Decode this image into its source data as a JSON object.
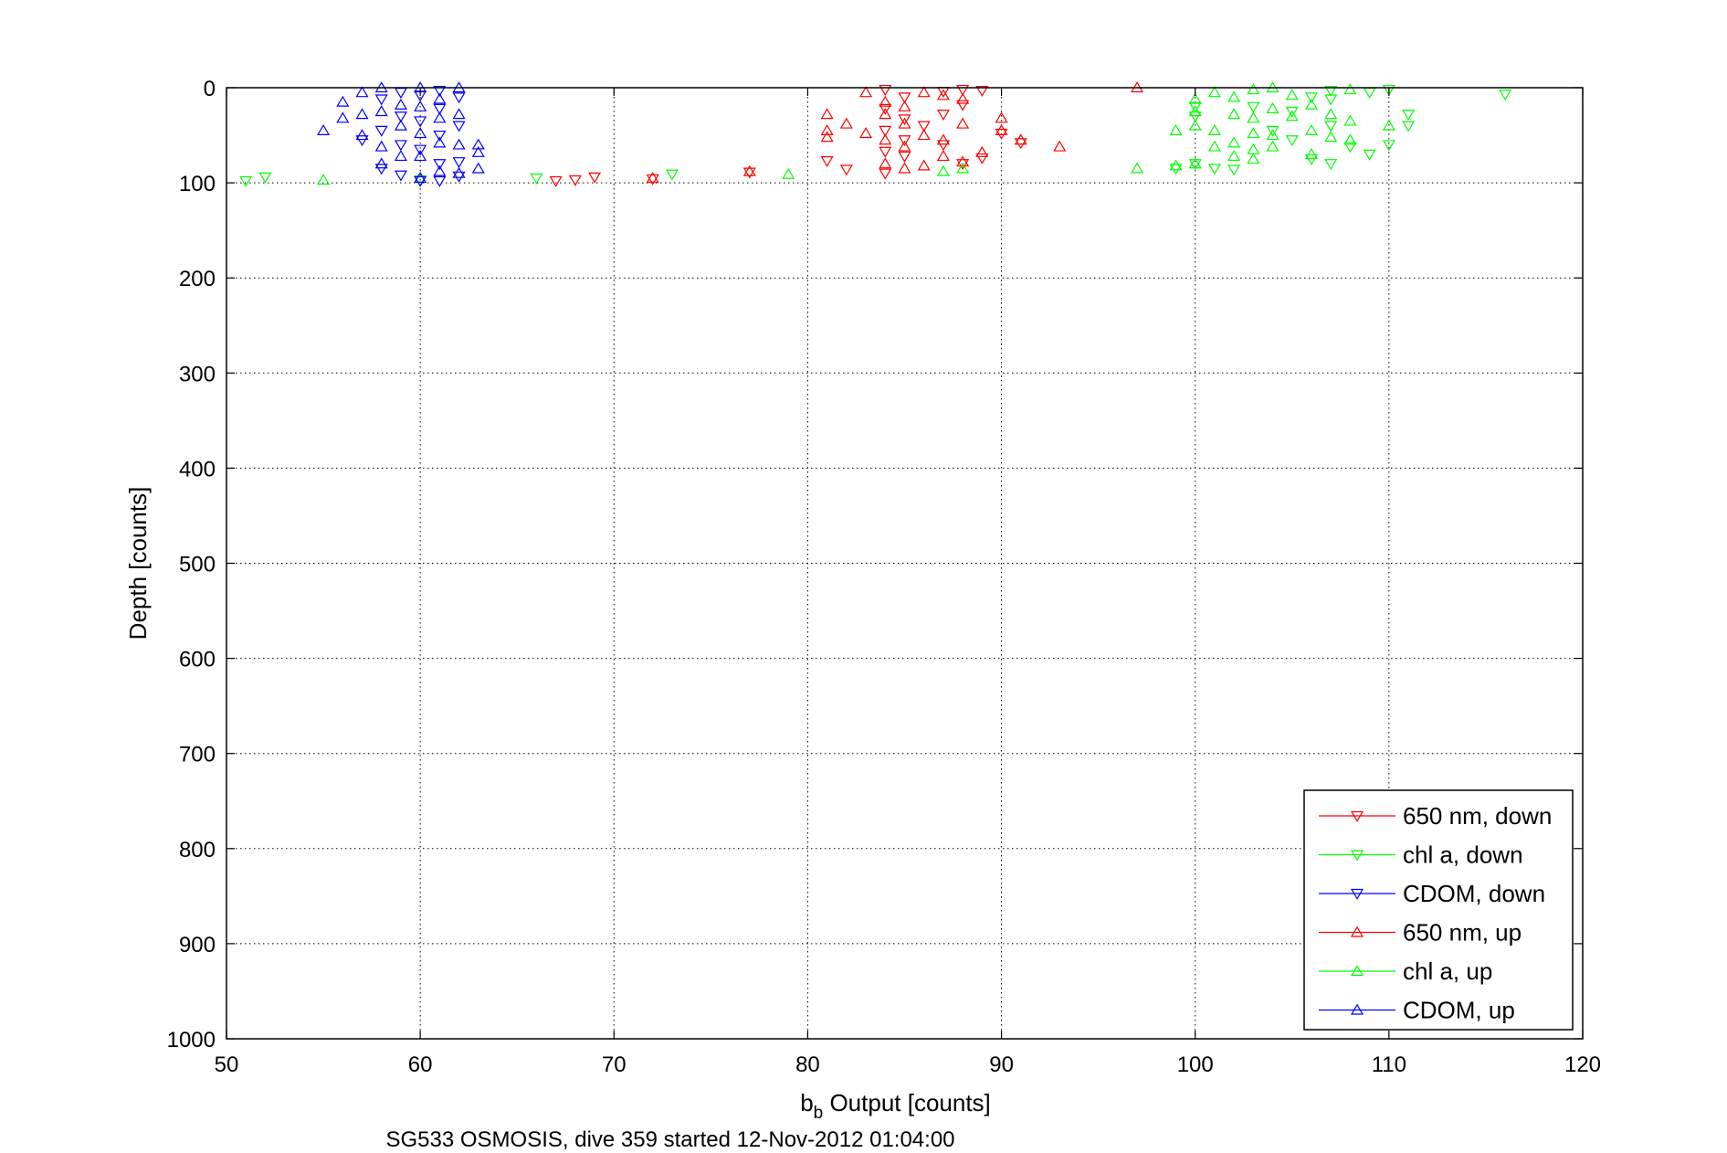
{
  "chart_data": {
    "type": "scatter",
    "title": "",
    "xlabel": "b",
    "xlabel_sub": "b",
    "xlabel_rest": " Output [counts]",
    "ylabel": "Depth [counts]",
    "caption": "SG533 OSMOSIS, dive 359 started 12-Nov-2012 01:04:00",
    "xlim": [
      50,
      120
    ],
    "ylim": [
      0,
      1000
    ],
    "y_reversed": true,
    "grid": true,
    "legend_position": "bottom-right",
    "xticks": [
      "50",
      "60",
      "70",
      "80",
      "90",
      "100",
      "110",
      "120"
    ],
    "yticks": [
      "0",
      "100",
      "200",
      "300",
      "400",
      "500",
      "600",
      "700",
      "800",
      "900",
      "1000"
    ],
    "series": [
      {
        "name": "650 nm, down",
        "color": "#ff0000",
        "marker": "triangle-down",
        "points": [
          [
            67,
            98
          ],
          [
            68,
            97
          ],
          [
            69,
            94
          ],
          [
            72,
            96
          ],
          [
            77,
            89
          ],
          [
            81,
            77
          ],
          [
            82,
            86
          ],
          [
            84,
            2
          ],
          [
            84,
            22
          ],
          [
            84,
            45
          ],
          [
            84,
            67
          ],
          [
            84,
            90
          ],
          [
            85,
            10
          ],
          [
            85,
            33
          ],
          [
            85,
            55
          ],
          [
            85,
            72
          ],
          [
            86,
            40
          ],
          [
            87,
            4
          ],
          [
            87,
            28
          ],
          [
            87,
            60
          ],
          [
            88,
            2
          ],
          [
            88,
            18
          ],
          [
            88,
            80
          ],
          [
            89,
            3
          ],
          [
            89,
            74
          ],
          [
            90,
            48
          ],
          [
            91,
            58
          ]
        ]
      },
      {
        "name": "chl a, down",
        "color": "#00ff00",
        "marker": "triangle-down",
        "points": [
          [
            51,
            98
          ],
          [
            52,
            94
          ],
          [
            60,
            97
          ],
          [
            66,
            95
          ],
          [
            73,
            91
          ],
          [
            99,
            85
          ],
          [
            100,
            20
          ],
          [
            100,
            30
          ],
          [
            100,
            80
          ],
          [
            101,
            85
          ],
          [
            102,
            86
          ],
          [
            103,
            20
          ],
          [
            104,
            45
          ],
          [
            105,
            55
          ],
          [
            105,
            25
          ],
          [
            106,
            10
          ],
          [
            106,
            75
          ],
          [
            107,
            3
          ],
          [
            107,
            12
          ],
          [
            107,
            40
          ],
          [
            107,
            80
          ],
          [
            108,
            62
          ],
          [
            109,
            5
          ],
          [
            109,
            70
          ],
          [
            110,
            2
          ],
          [
            110,
            60
          ],
          [
            111,
            28
          ],
          [
            111,
            40
          ],
          [
            116,
            7
          ]
        ]
      },
      {
        "name": "CDOM, down",
        "color": "#0000ff",
        "marker": "triangle-down",
        "points": [
          [
            57,
            55
          ],
          [
            58,
            12
          ],
          [
            58,
            45
          ],
          [
            58,
            85
          ],
          [
            59,
            5
          ],
          [
            59,
            30
          ],
          [
            59,
            60
          ],
          [
            59,
            92
          ],
          [
            60,
            8
          ],
          [
            60,
            35
          ],
          [
            60,
            65
          ],
          [
            60,
            98
          ],
          [
            61,
            3
          ],
          [
            61,
            22
          ],
          [
            61,
            50
          ],
          [
            61,
            80
          ],
          [
            61,
            98
          ],
          [
            62,
            10
          ],
          [
            62,
            40
          ],
          [
            62,
            78
          ],
          [
            62,
            93
          ]
        ]
      },
      {
        "name": "650 nm, up",
        "color": "#ff0000",
        "marker": "triangle-up",
        "points": [
          [
            72,
            95
          ],
          [
            77,
            88
          ],
          [
            81,
            28
          ],
          [
            81,
            45
          ],
          [
            81,
            52
          ],
          [
            82,
            38
          ],
          [
            83,
            5
          ],
          [
            83,
            48
          ],
          [
            84,
            15
          ],
          [
            84,
            28
          ],
          [
            84,
            55
          ],
          [
            84,
            80
          ],
          [
            85,
            20
          ],
          [
            85,
            38
          ],
          [
            85,
            62
          ],
          [
            85,
            85
          ],
          [
            86,
            5
          ],
          [
            86,
            50
          ],
          [
            86,
            82
          ],
          [
            87,
            8
          ],
          [
            87,
            55
          ],
          [
            87,
            72
          ],
          [
            88,
            12
          ],
          [
            88,
            38
          ],
          [
            88,
            78
          ],
          [
            89,
            68
          ],
          [
            90,
            32
          ],
          [
            90,
            45
          ],
          [
            91,
            55
          ],
          [
            93,
            62
          ],
          [
            97,
            0
          ]
        ]
      },
      {
        "name": "chl a, up",
        "color": "#00ff00",
        "marker": "triangle-up",
        "points": [
          [
            55,
            97
          ],
          [
            79,
            91
          ],
          [
            87,
            88
          ],
          [
            88,
            85
          ],
          [
            97,
            85
          ],
          [
            99,
            45
          ],
          [
            99,
            82
          ],
          [
            100,
            12
          ],
          [
            100,
            25
          ],
          [
            100,
            40
          ],
          [
            100,
            80
          ],
          [
            101,
            5
          ],
          [
            101,
            45
          ],
          [
            101,
            62
          ],
          [
            102,
            10
          ],
          [
            102,
            28
          ],
          [
            102,
            58
          ],
          [
            102,
            72
          ],
          [
            103,
            2
          ],
          [
            103,
            32
          ],
          [
            103,
            48
          ],
          [
            103,
            65
          ],
          [
            103,
            75
          ],
          [
            104,
            0
          ],
          [
            104,
            22
          ],
          [
            104,
            50
          ],
          [
            104,
            62
          ],
          [
            105,
            8
          ],
          [
            105,
            30
          ],
          [
            106,
            18
          ],
          [
            106,
            45
          ],
          [
            106,
            70
          ],
          [
            107,
            28
          ],
          [
            107,
            52
          ],
          [
            108,
            2
          ],
          [
            108,
            35
          ],
          [
            108,
            55
          ],
          [
            110,
            40
          ]
        ]
      },
      {
        "name": "CDOM, up",
        "color": "#0000ff",
        "marker": "triangle-up",
        "points": [
          [
            55,
            45
          ],
          [
            56,
            32
          ],
          [
            56,
            15
          ],
          [
            57,
            5
          ],
          [
            57,
            28
          ],
          [
            57,
            50
          ],
          [
            58,
            0
          ],
          [
            58,
            25
          ],
          [
            58,
            62
          ],
          [
            58,
            80
          ],
          [
            59,
            18
          ],
          [
            59,
            40
          ],
          [
            59,
            72
          ],
          [
            60,
            0
          ],
          [
            60,
            20
          ],
          [
            60,
            48
          ],
          [
            60,
            72
          ],
          [
            60,
            95
          ],
          [
            61,
            12
          ],
          [
            61,
            32
          ],
          [
            61,
            58
          ],
          [
            61,
            88
          ],
          [
            62,
            0
          ],
          [
            62,
            28
          ],
          [
            62,
            60
          ],
          [
            62,
            90
          ],
          [
            63,
            60
          ],
          [
            63,
            68
          ],
          [
            63,
            85
          ]
        ]
      }
    ]
  }
}
